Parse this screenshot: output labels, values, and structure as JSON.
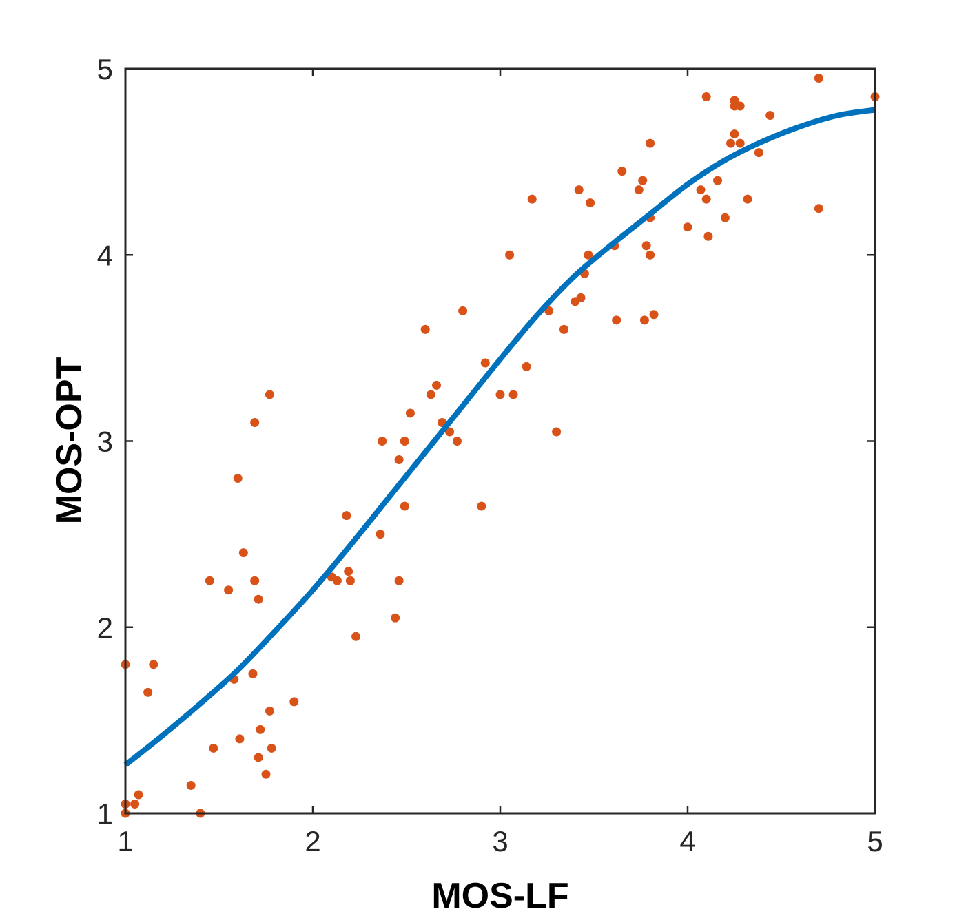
{
  "chart_data": {
    "type": "scatter",
    "title": "",
    "xlabel": "MOS-LF",
    "ylabel": "MOS-OPT",
    "xlim": [
      1,
      5
    ],
    "ylim": [
      1,
      5
    ],
    "xticks": [
      1,
      2,
      3,
      4,
      5
    ],
    "yticks": [
      1,
      2,
      3,
      4,
      5
    ],
    "xtick_labels": [
      "1",
      "2",
      "3",
      "4",
      "5"
    ],
    "ytick_labels": [
      "1",
      "2",
      "3",
      "4",
      "5"
    ],
    "grid": false,
    "colors": {
      "points": "#D95319",
      "curve": "#0072BD",
      "axes": "#262626"
    },
    "series": [
      {
        "type": "scatter",
        "points": [
          [
            1.0,
            1.0
          ],
          [
            1.0,
            1.05
          ],
          [
            1.0,
            1.8
          ],
          [
            1.05,
            1.05
          ],
          [
            1.07,
            1.1
          ],
          [
            1.12,
            1.65
          ],
          [
            1.15,
            1.8
          ],
          [
            1.35,
            1.15
          ],
          [
            1.4,
            1.0
          ],
          [
            1.45,
            2.25
          ],
          [
            1.47,
            1.35
          ],
          [
            1.55,
            2.2
          ],
          [
            1.58,
            1.72
          ],
          [
            1.6,
            2.8
          ],
          [
            1.61,
            1.4
          ],
          [
            1.63,
            2.4
          ],
          [
            1.68,
            1.75
          ],
          [
            1.69,
            3.1
          ],
          [
            1.69,
            2.25
          ],
          [
            1.71,
            2.15
          ],
          [
            1.71,
            1.3
          ],
          [
            1.72,
            1.45
          ],
          [
            1.75,
            1.21
          ],
          [
            1.77,
            1.55
          ],
          [
            1.77,
            3.25
          ],
          [
            1.78,
            1.35
          ],
          [
            1.9,
            1.6
          ],
          [
            2.1,
            2.27
          ],
          [
            2.13,
            2.25
          ],
          [
            2.18,
            2.6
          ],
          [
            2.19,
            2.3
          ],
          [
            2.2,
            2.25
          ],
          [
            2.23,
            1.95
          ],
          [
            2.36,
            2.5
          ],
          [
            2.37,
            3.0
          ],
          [
            2.44,
            2.05
          ],
          [
            2.46,
            2.9
          ],
          [
            2.46,
            2.25
          ],
          [
            2.49,
            3.0
          ],
          [
            2.49,
            2.65
          ],
          [
            2.52,
            3.15
          ],
          [
            2.6,
            3.6
          ],
          [
            2.63,
            3.25
          ],
          [
            2.66,
            3.3
          ],
          [
            2.69,
            3.1
          ],
          [
            2.73,
            3.05
          ],
          [
            2.77,
            3.0
          ],
          [
            2.8,
            3.7
          ],
          [
            2.9,
            2.65
          ],
          [
            2.92,
            3.42
          ],
          [
            3.0,
            3.25
          ],
          [
            3.05,
            4.0
          ],
          [
            3.07,
            3.25
          ],
          [
            3.14,
            3.4
          ],
          [
            3.17,
            4.3
          ],
          [
            3.26,
            3.7
          ],
          [
            3.3,
            3.05
          ],
          [
            3.34,
            3.6
          ],
          [
            3.4,
            3.75
          ],
          [
            3.42,
            4.35
          ],
          [
            3.43,
            3.77
          ],
          [
            3.45,
            3.9
          ],
          [
            3.47,
            4.0
          ],
          [
            3.48,
            4.28
          ],
          [
            3.61,
            4.05
          ],
          [
            3.62,
            3.65
          ],
          [
            3.65,
            4.45
          ],
          [
            3.74,
            4.35
          ],
          [
            3.76,
            4.4
          ],
          [
            3.77,
            3.65
          ],
          [
            3.78,
            4.05
          ],
          [
            3.8,
            4.6
          ],
          [
            3.8,
            4.2
          ],
          [
            3.8,
            4.0
          ],
          [
            3.82,
            3.68
          ],
          [
            4.0,
            4.15
          ],
          [
            4.07,
            4.35
          ],
          [
            4.1,
            4.3
          ],
          [
            4.1,
            4.85
          ],
          [
            4.11,
            4.1
          ],
          [
            4.16,
            4.4
          ],
          [
            4.2,
            4.2
          ],
          [
            4.23,
            4.6
          ],
          [
            4.25,
            4.65
          ],
          [
            4.25,
            4.8
          ],
          [
            4.25,
            4.83
          ],
          [
            4.28,
            4.8
          ],
          [
            4.28,
            4.6
          ],
          [
            4.32,
            4.3
          ],
          [
            4.38,
            4.55
          ],
          [
            4.44,
            4.75
          ],
          [
            4.7,
            4.25
          ],
          [
            4.7,
            4.95
          ],
          [
            5.0,
            4.85
          ]
        ]
      },
      {
        "type": "line",
        "x": [
          1.0,
          1.2,
          1.4,
          1.6,
          1.8,
          2.0,
          2.2,
          2.4,
          2.6,
          2.8,
          3.0,
          3.2,
          3.4,
          3.6,
          3.8,
          4.0,
          4.2,
          4.4,
          4.6,
          4.8,
          5.0
        ],
        "y": [
          1.26,
          1.42,
          1.59,
          1.77,
          1.98,
          2.2,
          2.44,
          2.69,
          2.94,
          3.19,
          3.44,
          3.68,
          3.89,
          4.06,
          4.22,
          4.38,
          4.51,
          4.61,
          4.69,
          4.75,
          4.78
        ]
      }
    ]
  }
}
